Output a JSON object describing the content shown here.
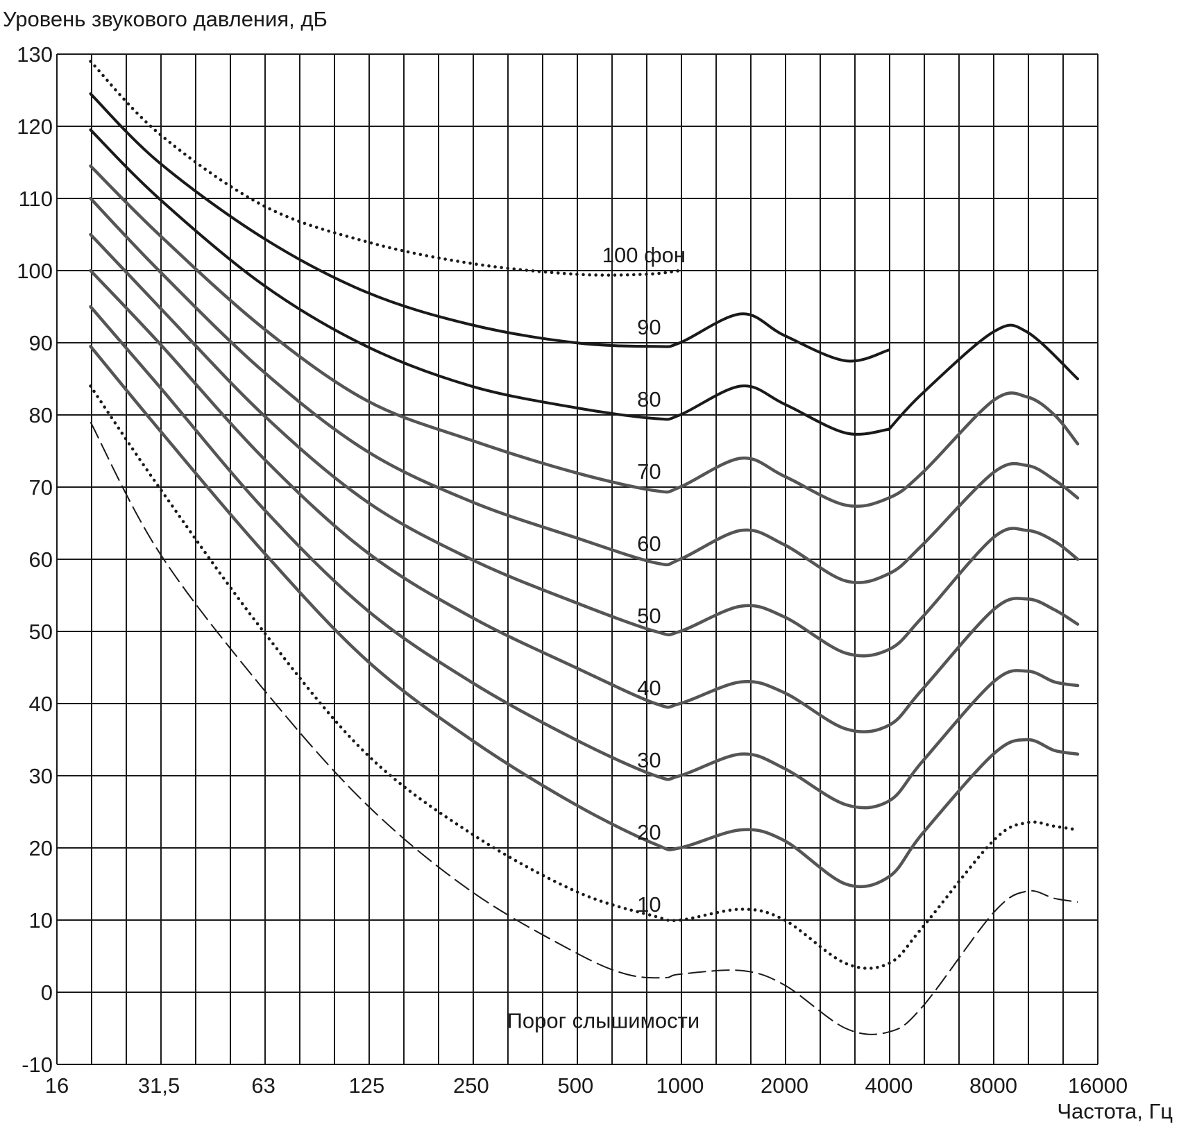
{
  "chart_data": {
    "type": "line",
    "title": "",
    "ylabel": "Уровень звукового давления, дБ",
    "xlabel": "Частота, Гц",
    "xscale": "log2",
    "grid": true,
    "ylim": [
      -10,
      130
    ],
    "xlim": [
      16,
      16000
    ],
    "yticks": [
      130,
      120,
      110,
      100,
      90,
      80,
      70,
      60,
      50,
      40,
      30,
      20,
      10,
      0,
      -10
    ],
    "xtick_labels": [
      {
        "value": 16,
        "label": "16"
      },
      {
        "value": 31.5,
        "label": "31,5"
      },
      {
        "value": 63,
        "label": "63"
      },
      {
        "value": 125,
        "label": "125"
      },
      {
        "value": 250,
        "label": "250"
      },
      {
        "value": 500,
        "label": "500"
      },
      {
        "value": 1000,
        "label": "1000"
      },
      {
        "value": 2000,
        "label": "2000"
      },
      {
        "value": 4000,
        "label": "4000"
      },
      {
        "value": 8000,
        "label": "8000"
      },
      {
        "value": 16000,
        "label": "16000"
      }
    ],
    "series": [
      {
        "name": "100 фон",
        "label_at": [
          1000,
          100
        ],
        "stroke": "#1a1a1a",
        "style": "dotted",
        "points": [
          [
            20,
            129
          ],
          [
            31.5,
            119
          ],
          [
            63,
            109
          ],
          [
            125,
            104
          ],
          [
            250,
            101
          ],
          [
            500,
            99.5
          ],
          [
            800,
            99.5
          ],
          [
            1000,
            100
          ]
        ]
      },
      {
        "name": "90",
        "label_at": [
          850,
          90
        ],
        "stroke": "#1a1a1a",
        "style": "solid",
        "points": [
          [
            20,
            124.5
          ],
          [
            31.5,
            115
          ],
          [
            63,
            104.5
          ],
          [
            125,
            97
          ],
          [
            250,
            92.5
          ],
          [
            500,
            90
          ],
          [
            850,
            89.5
          ],
          [
            1000,
            90
          ],
          [
            1500,
            94
          ],
          [
            2000,
            91
          ],
          [
            3000,
            87.5
          ],
          [
            4000,
            89
          ]
        ]
      },
      {
        "name": "",
        "label_at": null,
        "stroke": "#1a1a1a",
        "style": "solid",
        "points": [
          [
            4000,
            78
          ],
          [
            5000,
            83
          ],
          [
            8000,
            91.5
          ],
          [
            10000,
            91.5
          ],
          [
            14000,
            85
          ]
        ]
      },
      {
        "name": "80",
        "label_at": [
          850,
          80
        ],
        "stroke": "#1a1a1a",
        "style": "solid",
        "points": [
          [
            20,
            119.5
          ],
          [
            31.5,
            110
          ],
          [
            63,
            98
          ],
          [
            125,
            89.5
          ],
          [
            250,
            84
          ],
          [
            500,
            81
          ],
          [
            850,
            79.5
          ],
          [
            1000,
            80
          ],
          [
            1500,
            84
          ],
          [
            2000,
            81.5
          ],
          [
            3000,
            77.5
          ],
          [
            4000,
            78
          ]
        ]
      },
      {
        "name": "70",
        "label_at": [
          850,
          70
        ],
        "stroke": "#555555",
        "style": "solid",
        "points": [
          [
            20,
            114.5
          ],
          [
            31.5,
            105
          ],
          [
            63,
            92
          ],
          [
            125,
            82
          ],
          [
            250,
            76.5
          ],
          [
            500,
            72
          ],
          [
            850,
            69.5
          ],
          [
            1000,
            70
          ],
          [
            1500,
            74
          ],
          [
            2000,
            71.5
          ],
          [
            3000,
            67.5
          ],
          [
            4000,
            68.5
          ],
          [
            5000,
            72
          ],
          [
            8000,
            82
          ],
          [
            10000,
            82.5
          ],
          [
            12000,
            80
          ],
          [
            14000,
            76
          ]
        ]
      },
      {
        "name": "60",
        "label_at": [
          850,
          60
        ],
        "stroke": "#555555",
        "style": "solid",
        "points": [
          [
            20,
            110
          ],
          [
            31.5,
            100
          ],
          [
            63,
            86
          ],
          [
            125,
            75
          ],
          [
            250,
            68
          ],
          [
            500,
            63
          ],
          [
            850,
            59.5
          ],
          [
            1000,
            60
          ],
          [
            1500,
            64
          ],
          [
            2000,
            62
          ],
          [
            3000,
            57
          ],
          [
            4000,
            58
          ],
          [
            5000,
            62
          ],
          [
            8000,
            72
          ],
          [
            10000,
            73
          ],
          [
            12000,
            71
          ],
          [
            14000,
            68.5
          ]
        ]
      },
      {
        "name": "50",
        "label_at": [
          850,
          50
        ],
        "stroke": "#555555",
        "style": "solid",
        "points": [
          [
            20,
            105
          ],
          [
            31.5,
            95
          ],
          [
            63,
            80
          ],
          [
            125,
            68
          ],
          [
            250,
            60
          ],
          [
            500,
            54
          ],
          [
            850,
            50
          ],
          [
            1000,
            50
          ],
          [
            1500,
            53.5
          ],
          [
            2000,
            52
          ],
          [
            3000,
            47
          ],
          [
            4000,
            47.5
          ],
          [
            5000,
            52
          ],
          [
            8000,
            63
          ],
          [
            10000,
            64
          ],
          [
            12000,
            62.5
          ],
          [
            14000,
            60
          ]
        ]
      },
      {
        "name": "40",
        "label_at": [
          850,
          40
        ],
        "stroke": "#555555",
        "style": "solid",
        "points": [
          [
            20,
            100
          ],
          [
            31.5,
            90
          ],
          [
            63,
            74
          ],
          [
            125,
            61
          ],
          [
            250,
            52
          ],
          [
            500,
            45
          ],
          [
            850,
            40
          ],
          [
            1000,
            40
          ],
          [
            1500,
            43
          ],
          [
            2000,
            41.5
          ],
          [
            3000,
            36.5
          ],
          [
            4000,
            37
          ],
          [
            5000,
            42
          ],
          [
            8000,
            53
          ],
          [
            10000,
            54.5
          ],
          [
            12000,
            53
          ],
          [
            14000,
            51
          ]
        ]
      },
      {
        "name": "30",
        "label_at": [
          850,
          30
        ],
        "stroke": "#555555",
        "style": "solid",
        "points": [
          [
            20,
            95
          ],
          [
            31.5,
            84
          ],
          [
            63,
            67
          ],
          [
            125,
            53
          ],
          [
            250,
            43
          ],
          [
            500,
            35
          ],
          [
            850,
            30
          ],
          [
            1000,
            30
          ],
          [
            1500,
            33
          ],
          [
            2000,
            31
          ],
          [
            3000,
            26
          ],
          [
            4000,
            26.5
          ],
          [
            5000,
            32
          ],
          [
            8000,
            43
          ],
          [
            10000,
            44.5
          ],
          [
            12000,
            43
          ],
          [
            14000,
            42.5
          ]
        ]
      },
      {
        "name": "20",
        "label_at": [
          850,
          20
        ],
        "stroke": "#555555",
        "style": "solid",
        "points": [
          [
            20,
            89.5
          ],
          [
            31.5,
            78
          ],
          [
            63,
            61
          ],
          [
            125,
            46
          ],
          [
            250,
            35
          ],
          [
            500,
            26
          ],
          [
            850,
            20.5
          ],
          [
            1000,
            20
          ],
          [
            1500,
            22.5
          ],
          [
            2000,
            21
          ],
          [
            3000,
            15
          ],
          [
            4000,
            16
          ],
          [
            5000,
            22
          ],
          [
            8000,
            33
          ],
          [
            10000,
            35
          ],
          [
            12000,
            33.5
          ],
          [
            14000,
            33
          ]
        ]
      },
      {
        "name": "10",
        "label_at": [
          850,
          10
        ],
        "stroke": "#1a1a1a",
        "style": "dotted",
        "points": [
          [
            20,
            84
          ],
          [
            31.5,
            70
          ],
          [
            63,
            50
          ],
          [
            125,
            33
          ],
          [
            250,
            22
          ],
          [
            500,
            14
          ],
          [
            850,
            10.5
          ],
          [
            1000,
            10
          ],
          [
            1500,
            11.5
          ],
          [
            2000,
            10
          ],
          [
            3000,
            4
          ],
          [
            4000,
            4
          ],
          [
            5000,
            9
          ],
          [
            8000,
            21
          ],
          [
            10000,
            23.5
          ],
          [
            12000,
            23
          ],
          [
            14000,
            22.5
          ]
        ]
      },
      {
        "name": "Порог слышимости",
        "label_at": [
          500,
          -4
        ],
        "stroke": "#1a1a1a",
        "style": "dashed",
        "points": [
          [
            20,
            79
          ],
          [
            31.5,
            61
          ],
          [
            63,
            42
          ],
          [
            125,
            26
          ],
          [
            250,
            14
          ],
          [
            500,
            5.5
          ],
          [
            700,
            2.5
          ],
          [
            900,
            2
          ],
          [
            1000,
            2.5
          ],
          [
            1500,
            3
          ],
          [
            2000,
            1
          ],
          [
            3000,
            -5
          ],
          [
            4000,
            -5.5
          ],
          [
            5000,
            -2
          ],
          [
            8000,
            11
          ],
          [
            10000,
            14
          ],
          [
            12000,
            13
          ],
          [
            14000,
            12.5
          ]
        ]
      }
    ]
  }
}
